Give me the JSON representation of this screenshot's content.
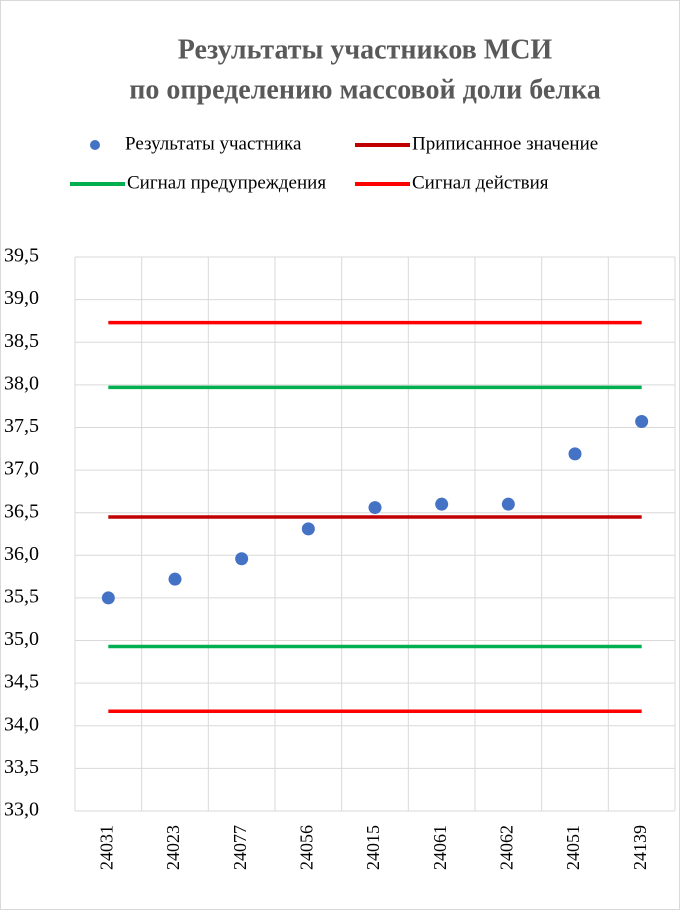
{
  "chart_data": {
    "type": "scatter",
    "title": [
      "Результаты участников МСИ",
      "по определению массовой доли белка"
    ],
    "categories": [
      "24031",
      "24023",
      "24077",
      "24056",
      "24015",
      "24061",
      "24062",
      "24051",
      "24139"
    ],
    "series": [
      {
        "name": "Результаты участника",
        "color": "#4472c4",
        "kind": "scatter",
        "values": [
          35.5,
          35.72,
          35.96,
          36.31,
          36.56,
          36.6,
          36.6,
          37.19,
          37.57
        ]
      },
      {
        "name": "Приписанное значение",
        "color": "#c00000",
        "kind": "line",
        "values": [
          36.45,
          36.45,
          36.45,
          36.45,
          36.45,
          36.45,
          36.45,
          36.45,
          36.45
        ]
      },
      {
        "name": "Сигнал предупреждения",
        "color": "#00b050",
        "kind": "line",
        "values": [
          37.97,
          37.97,
          37.97,
          37.97,
          37.97,
          37.97,
          37.97,
          37.97,
          37.97
        ]
      },
      {
        "name": "Сигнал предупреждения",
        "color": "#00b050",
        "kind": "line",
        "values": [
          34.93,
          34.93,
          34.93,
          34.93,
          34.93,
          34.93,
          34.93,
          34.93,
          34.93
        ]
      },
      {
        "name": "Сигнал действия",
        "color": "#ff0000",
        "kind": "line",
        "values": [
          38.73,
          38.73,
          38.73,
          38.73,
          38.73,
          38.73,
          38.73,
          38.73,
          38.73
        ]
      },
      {
        "name": "Сигнал действия",
        "color": "#ff0000",
        "kind": "line",
        "values": [
          34.17,
          34.17,
          34.17,
          34.17,
          34.17,
          34.17,
          34.17,
          34.17,
          34.17
        ]
      }
    ],
    "ylim": [
      33,
      39.5
    ],
    "yticks": [
      {
        "value": 33,
        "label": "33,0"
      },
      {
        "value": 33.5,
        "label": "33,5"
      },
      {
        "value": 34,
        "label": "34,0"
      },
      {
        "value": 34.5,
        "label": "34,5"
      },
      {
        "value": 35,
        "label": "35,0"
      },
      {
        "value": 35.5,
        "label": "35,5"
      },
      {
        "value": 36,
        "label": "36,0"
      },
      {
        "value": 36.5,
        "label": "36,5"
      },
      {
        "value": 37,
        "label": "37,0"
      },
      {
        "value": 37.5,
        "label": "37,5"
      },
      {
        "value": 38,
        "label": "38,0"
      },
      {
        "value": 38.5,
        "label": "38,5"
      },
      {
        "value": 39,
        "label": "39,0"
      },
      {
        "value": 39.5,
        "label": "39,5"
      }
    ],
    "grid": true,
    "legend": "top"
  }
}
